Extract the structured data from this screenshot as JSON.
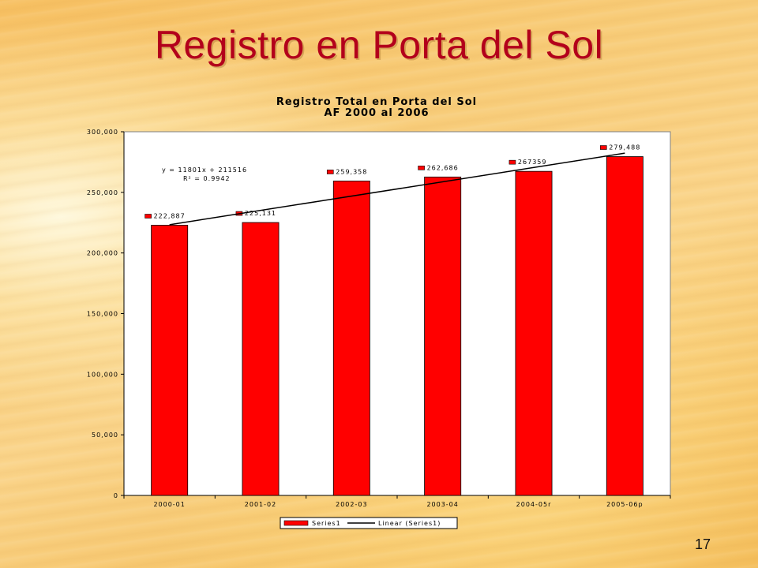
{
  "slide": {
    "title": "Registro en Porta del Sol",
    "page_number": "17"
  },
  "chart_data": {
    "type": "bar",
    "title": "Registro Total en Porta del Sol",
    "subtitle": "AF 2000 al 2006",
    "categories": [
      "2000-01",
      "2001-02",
      "2002-03",
      "2003-04",
      "2004-05r",
      "2005-06p"
    ],
    "series": [
      {
        "name": "Series1",
        "values": [
          222887,
          225131,
          259358,
          262686,
          267359,
          279488
        ],
        "data_labels": [
          "222,887",
          "225,131",
          "259,358",
          "262,686",
          "267359",
          "279,488"
        ],
        "color": "#ff0000"
      }
    ],
    "trendline": {
      "name": "Linear (Series1)",
      "equation": "y = 11801x + 211516",
      "r2": "R² = 0.9942",
      "slope": 11801,
      "intercept": 211516,
      "color": "#000000"
    },
    "yticks": [
      "300,000",
      "250,000",
      "200,000",
      "150,000",
      "100,000",
      "50,000",
      "0"
    ],
    "ylim": [
      0,
      300000
    ],
    "xlabel": "",
    "ylabel": "",
    "grid": false,
    "legend": {
      "position": "bottom",
      "entries": [
        "Series1",
        "Linear (Series1)"
      ]
    }
  }
}
